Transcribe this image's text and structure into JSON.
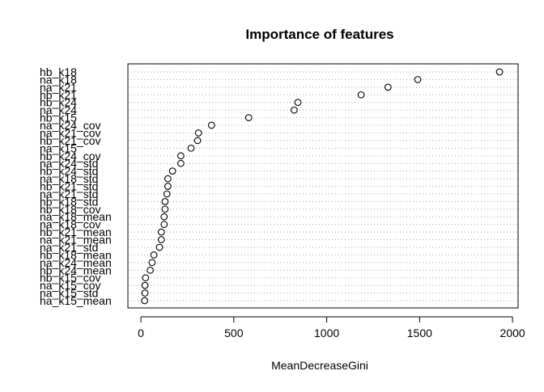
{
  "chart_data": {
    "type": "scatter",
    "title": "Importance of features",
    "xlabel": "MeanDecreaseGini",
    "ylabel": "",
    "xlim": [
      -70,
      2030
    ],
    "xticks": [
      0,
      500,
      1000,
      1500,
      2000
    ],
    "xtick_labels": [
      "0",
      "500",
      "1000",
      "1500",
      "2000"
    ],
    "grid": "horizontal dotted",
    "marker": "open-circle",
    "categories": [
      "hb_k18",
      "na_k18",
      "na_k21",
      "hb_k21",
      "hb_k24",
      "na_k24",
      "hb_k15",
      "na_k24_cov",
      "na_k21_cov",
      "hb_k21_cov",
      "na_k15",
      "hb_k24_cov",
      "na_k24_std",
      "hb_k24_std",
      "na_k18_std",
      "hb_k21_std",
      "na_k21_std",
      "hb_k18_std",
      "hb_k18_cov",
      "na_k18_mean",
      "na_k18_cov",
      "hb_k21_mean",
      "na_k21_mean",
      "na_k21_std",
      "hb_k18_mean",
      "na_k24_mean",
      "hb_k24_mean",
      "hb_k15_cov",
      "na_k15_cov",
      "na_k15_std",
      "ha_k15_mean"
    ],
    "values": [
      1930,
      1490,
      1330,
      1185,
      845,
      825,
      580,
      380,
      310,
      305,
      270,
      215,
      215,
      170,
      145,
      145,
      140,
      130,
      130,
      125,
      125,
      110,
      110,
      100,
      70,
      60,
      50,
      25,
      22,
      22,
      20
    ]
  }
}
